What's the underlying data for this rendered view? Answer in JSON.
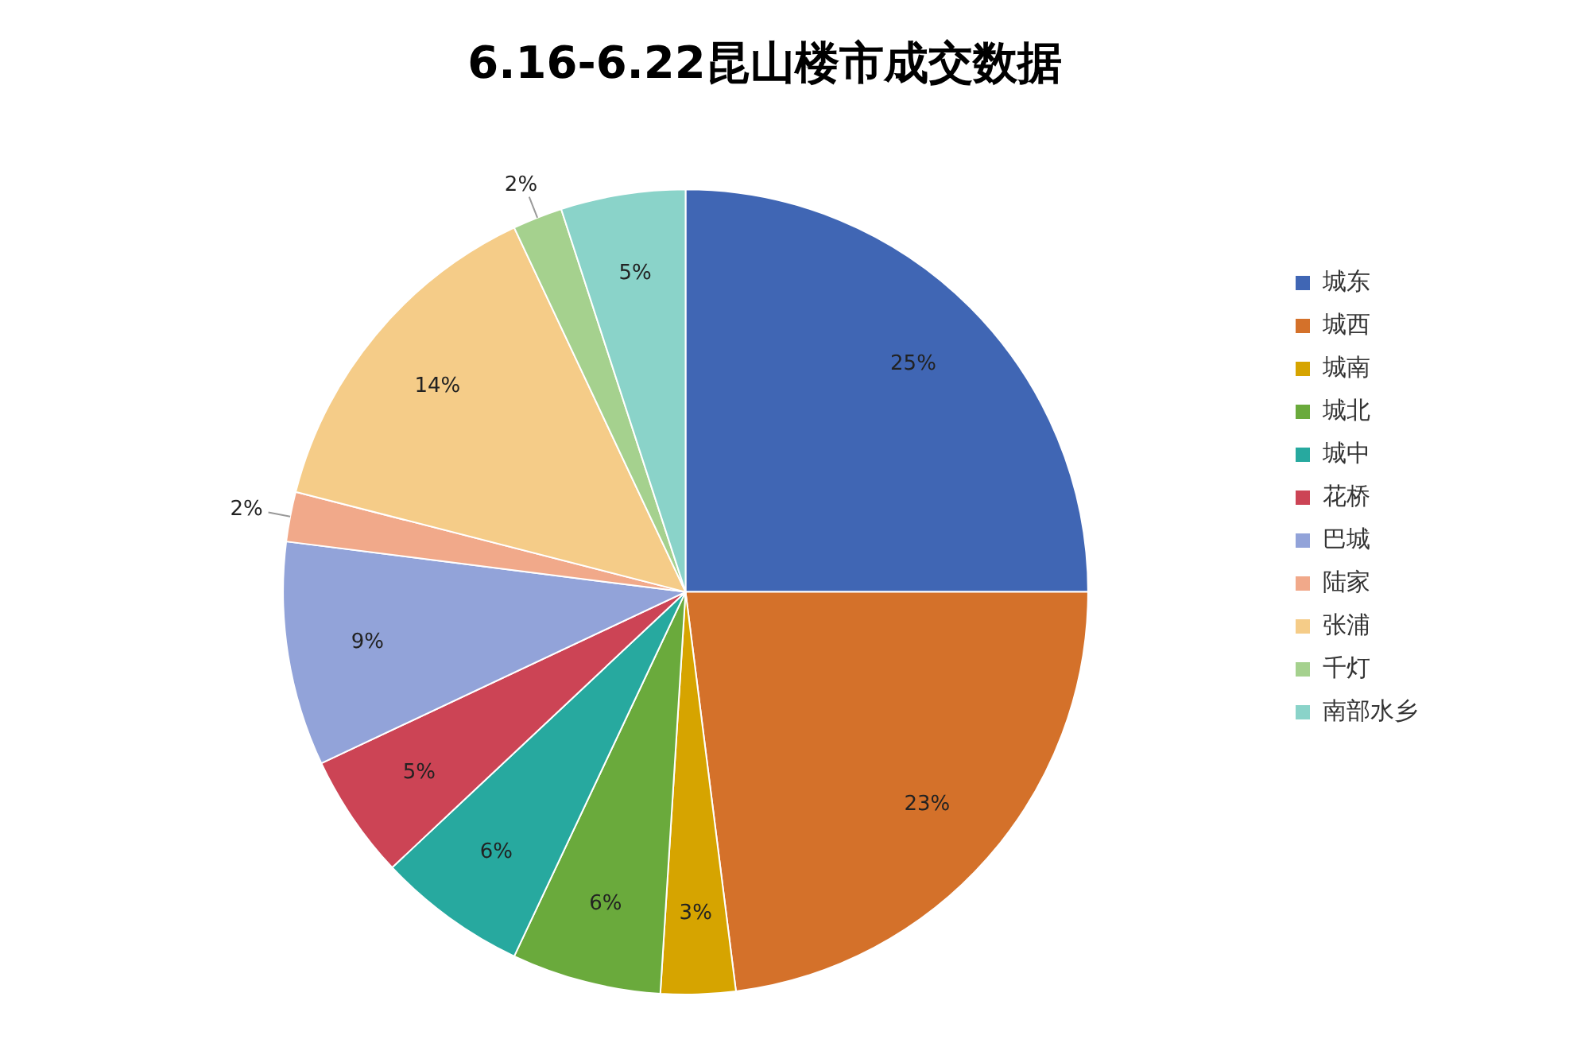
{
  "chart_data": {
    "type": "pie",
    "title": "6.16-6.22昆山楼市成交数据",
    "categories": [
      "城东",
      "城西",
      "城南",
      "城北",
      "城中",
      "花桥",
      "巴城",
      "陆家",
      "张浦",
      "千灯",
      "南部水乡"
    ],
    "values": [
      25,
      23,
      3,
      6,
      6,
      5,
      9,
      2,
      14,
      2,
      5
    ],
    "colors": [
      "#4066b4",
      "#d4712a",
      "#d6a400",
      "#6aaa3c",
      "#27a99f",
      "#cc4455",
      "#92a3d9",
      "#f1a98a",
      "#f5cc88",
      "#a5d18e",
      "#8ad3c9"
    ],
    "value_labels": [
      "25%",
      "23%",
      "3%",
      "6%",
      "6%",
      "5%",
      "9%",
      "2%",
      "14%",
      "2%",
      "5%"
    ],
    "legend": "right"
  }
}
